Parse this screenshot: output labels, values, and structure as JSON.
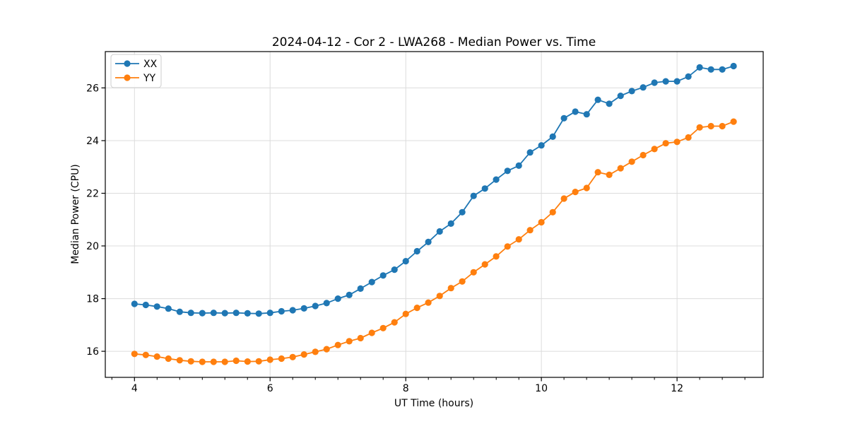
{
  "figure": {
    "background": "#ffffff",
    "text_color": "#000000",
    "grid_color": "#dcdcdc",
    "axis_color": "#000000",
    "legend_border_color": "#cccccc"
  },
  "chart_data": {
    "type": "line",
    "title": "2024-04-12 - Cor 2 - LWA268 - Median Power vs. Time",
    "xlabel": "UT Time (hours)",
    "ylabel": "Median Power (CPU)",
    "xlim": [
      3.57,
      13.27
    ],
    "ylim": [
      15.01,
      27.38
    ],
    "grid": true,
    "x_major_ticks": [
      4,
      6,
      8,
      10,
      12
    ],
    "x_tick_labels": [
      "4",
      "6",
      "8",
      "10",
      "12"
    ],
    "x_minor_tick_step": 0.3333333,
    "y_major_ticks": [
      16,
      18,
      20,
      22,
      24,
      26
    ],
    "y_tick_labels": [
      "16",
      "18",
      "20",
      "22",
      "24",
      "26"
    ],
    "legend": {
      "position": "upper left",
      "entries": [
        "XX",
        "YY"
      ]
    },
    "x": [
      4.0,
      4.167,
      4.333,
      4.5,
      4.667,
      4.833,
      5.0,
      5.167,
      5.333,
      5.5,
      5.667,
      5.833,
      6.0,
      6.167,
      6.333,
      6.5,
      6.667,
      6.833,
      7.0,
      7.167,
      7.333,
      7.5,
      7.667,
      7.833,
      8.0,
      8.167,
      8.333,
      8.5,
      8.667,
      8.833,
      9.0,
      9.167,
      9.333,
      9.5,
      9.667,
      9.833,
      10.0,
      10.167,
      10.333,
      10.5,
      10.667,
      10.833,
      11.0,
      11.167,
      11.333,
      11.5,
      11.667,
      11.833,
      12.0,
      12.167,
      12.333,
      12.5,
      12.667,
      12.833
    ],
    "series": [
      {
        "name": "XX",
        "color": "#1f77b4",
        "marker": "circle",
        "values": [
          17.8,
          17.76,
          17.7,
          17.62,
          17.5,
          17.46,
          17.45,
          17.46,
          17.45,
          17.46,
          17.44,
          17.43,
          17.46,
          17.52,
          17.56,
          17.63,
          17.72,
          17.83,
          18.0,
          18.14,
          18.38,
          18.63,
          18.88,
          19.1,
          19.42,
          19.8,
          20.15,
          20.55,
          20.85,
          21.28,
          21.9,
          22.18,
          22.52,
          22.85,
          23.05,
          23.55,
          23.82,
          24.15,
          24.85,
          25.1,
          25.0,
          25.55,
          25.4,
          25.7,
          25.88,
          26.02,
          26.2,
          26.25,
          26.25,
          26.43,
          26.78,
          26.7,
          26.7,
          26.83
        ]
      },
      {
        "name": "YY",
        "color": "#ff7f0e",
        "marker": "circle",
        "values": [
          15.9,
          15.86,
          15.8,
          15.72,
          15.66,
          15.62,
          15.6,
          15.6,
          15.6,
          15.64,
          15.61,
          15.62,
          15.68,
          15.72,
          15.78,
          15.88,
          15.98,
          16.08,
          16.24,
          16.38,
          16.5,
          16.7,
          16.88,
          17.1,
          17.42,
          17.65,
          17.85,
          18.1,
          18.4,
          18.65,
          19.0,
          19.3,
          19.6,
          19.98,
          20.25,
          20.6,
          20.9,
          21.28,
          21.8,
          22.05,
          22.2,
          22.8,
          22.7,
          22.95,
          23.2,
          23.45,
          23.68,
          23.9,
          23.95,
          24.12,
          24.5,
          24.55,
          24.55,
          24.72
        ]
      }
    ]
  }
}
